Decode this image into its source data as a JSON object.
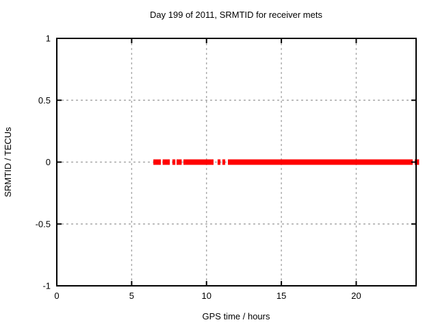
{
  "window": {
    "kind": "gnuplot-style chart image",
    "background": "#ffffff"
  },
  "chart_data": {
    "type": "scatter",
    "title": "Day 199 of 2011, SRMTID for receiver mets",
    "xlabel": "GPS time / hours",
    "ylabel": "SRMTID / TECUs",
    "xlim": [
      0,
      24
    ],
    "ylim": [
      -1,
      1
    ],
    "grid": true,
    "grid_style": "dashed",
    "legend_position": "none",
    "xticks": [
      {
        "value": 0,
        "label": "0"
      },
      {
        "value": 5,
        "label": "5"
      },
      {
        "value": 10,
        "label": "10"
      },
      {
        "value": 15,
        "label": "15"
      },
      {
        "value": 20,
        "label": "20"
      }
    ],
    "yticks": [
      {
        "value": -1,
        "label": "-1"
      },
      {
        "value": -0.5,
        "label": "-0.5"
      },
      {
        "value": 0,
        "label": "0"
      },
      {
        "value": 0.5,
        "label": "0.5"
      },
      {
        "value": 1,
        "label": "1"
      }
    ],
    "series": [
      {
        "name": "SRMTID",
        "marker": "filled-square",
        "color": "#ff0000",
        "y_value": 0,
        "segments_x_hours": [
          [
            6.45,
            6.95
          ],
          [
            7.07,
            7.55
          ],
          [
            7.72,
            7.92
          ],
          [
            8.0,
            8.34
          ],
          [
            8.46,
            10.47
          ],
          [
            10.74,
            10.93
          ],
          [
            11.06,
            11.25
          ],
          [
            11.43,
            23.77
          ],
          [
            23.91,
            24.2
          ]
        ]
      }
    ],
    "colors": {
      "data": "#ff0000",
      "grid": "#a8a8a8",
      "border": "#000000",
      "text": "#000000",
      "background": "#ffffff"
    }
  }
}
